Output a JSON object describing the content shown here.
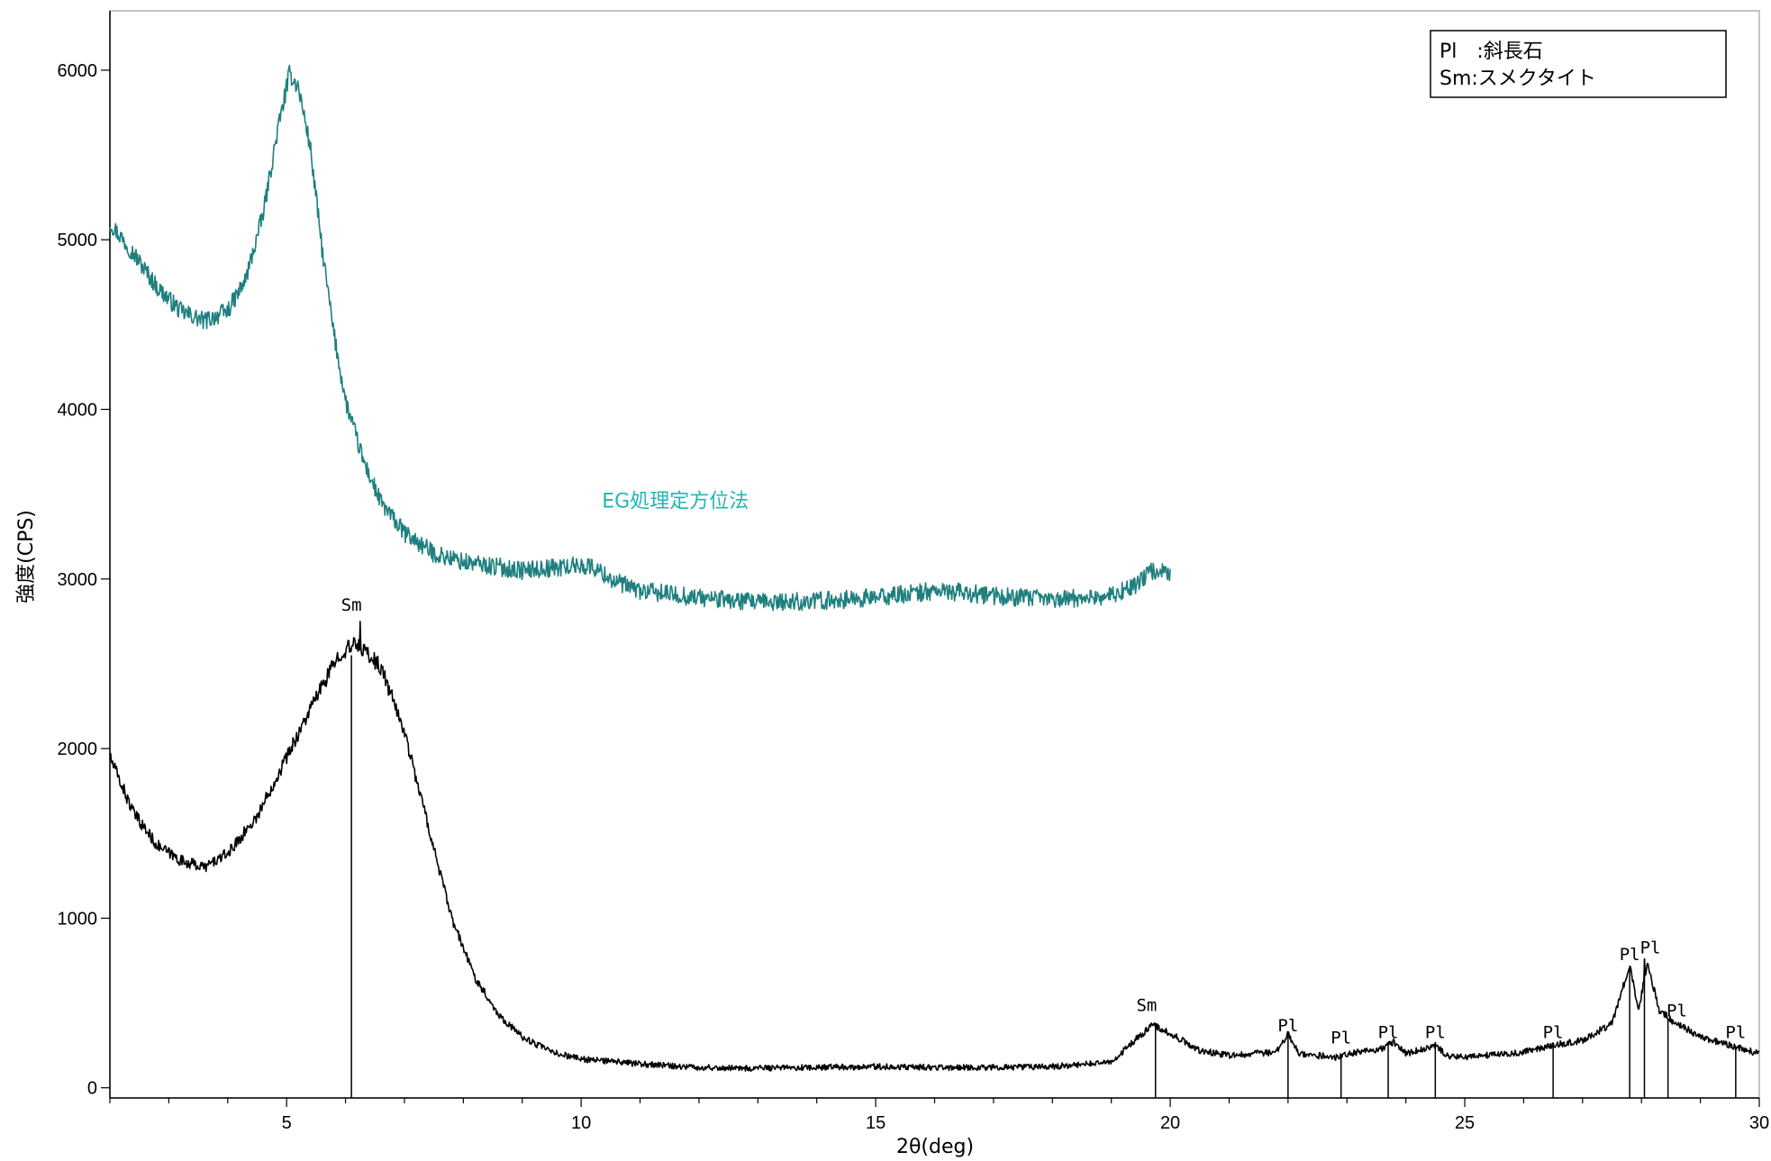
{
  "chart_data": {
    "type": "line",
    "xlabel": "2θ(deg)",
    "ylabel": "強度(CPS)",
    "xlim": [
      2,
      30
    ],
    "ylim": [
      -60,
      6350
    ],
    "x_ticks": [
      5,
      10,
      15,
      20,
      25,
      30
    ],
    "y_ticks": [
      0,
      1000,
      2000,
      3000,
      4000,
      5000,
      6000
    ],
    "x_minor_step": 1,
    "grid": false,
    "legend": {
      "position": "top-right",
      "lines": [
        "Pl　:斜長石",
        "Sm:スメクタイト"
      ]
    },
    "annotation": {
      "text": "EG処理定方位法",
      "color": "#22b5b5",
      "x": 11.6,
      "y": 3420
    },
    "series": [
      {
        "color": "#1f7f7f",
        "x_range": [
          2,
          20
        ],
        "noise": 45,
        "points": [
          [
            2,
            5100
          ],
          [
            2.4,
            4920
          ],
          [
            2.8,
            4720
          ],
          [
            3.2,
            4580
          ],
          [
            3.6,
            4520
          ],
          [
            4,
            4580
          ],
          [
            4.3,
            4760
          ],
          [
            4.6,
            5150
          ],
          [
            4.85,
            5650
          ],
          [
            5.05,
            5980
          ],
          [
            5.2,
            5900
          ],
          [
            5.4,
            5550
          ],
          [
            5.6,
            4950
          ],
          [
            5.8,
            4450
          ],
          [
            6,
            4050
          ],
          [
            6.3,
            3700
          ],
          [
            6.6,
            3450
          ],
          [
            7,
            3270
          ],
          [
            7.5,
            3150
          ],
          [
            8,
            3100
          ],
          [
            9,
            3050
          ],
          [
            10,
            3080
          ],
          [
            10.2,
            3070
          ],
          [
            10.6,
            2980
          ],
          [
            11,
            2930
          ],
          [
            12,
            2890
          ],
          [
            13,
            2860
          ],
          [
            14,
            2870
          ],
          [
            15,
            2890
          ],
          [
            16,
            2930
          ],
          [
            16.5,
            2920
          ],
          [
            17,
            2900
          ],
          [
            18,
            2880
          ],
          [
            19,
            2900
          ],
          [
            19.4,
            2960
          ],
          [
            19.7,
            3050
          ],
          [
            20,
            3040
          ]
        ]
      },
      {
        "color": "#000000",
        "x_range": [
          2,
          30
        ],
        "noise": 40,
        "points": [
          [
            2,
            1950
          ],
          [
            2.4,
            1620
          ],
          [
            2.8,
            1430
          ],
          [
            3.2,
            1340
          ],
          [
            3.6,
            1300
          ],
          [
            4,
            1380
          ],
          [
            4.5,
            1600
          ],
          [
            5,
            1950
          ],
          [
            5.5,
            2300
          ],
          [
            5.9,
            2560
          ],
          [
            6.2,
            2620
          ],
          [
            6.6,
            2480
          ],
          [
            7,
            2100
          ],
          [
            7.4,
            1550
          ],
          [
            7.8,
            1000
          ],
          [
            8.2,
            650
          ],
          [
            8.6,
            430
          ],
          [
            9,
            300
          ],
          [
            9.5,
            210
          ],
          [
            10,
            170
          ],
          [
            11,
            140
          ],
          [
            12,
            120
          ],
          [
            13,
            115
          ],
          [
            14,
            120
          ],
          [
            15,
            125
          ],
          [
            16,
            120
          ],
          [
            17,
            120
          ],
          [
            18,
            125
          ],
          [
            19,
            150
          ],
          [
            19.4,
            280
          ],
          [
            19.7,
            370
          ],
          [
            20,
            320
          ],
          [
            20.5,
            220
          ],
          [
            21,
            190
          ],
          [
            21.8,
            210
          ],
          [
            22,
            310
          ],
          [
            22.2,
            200
          ],
          [
            22.8,
            180
          ],
          [
            23,
            200
          ],
          [
            23.6,
            230
          ],
          [
            23.8,
            270
          ],
          [
            24,
            200
          ],
          [
            24.5,
            250
          ],
          [
            24.7,
            190
          ],
          [
            25,
            180
          ],
          [
            26,
            210
          ],
          [
            26.5,
            250
          ],
          [
            27,
            280
          ],
          [
            27.5,
            380
          ],
          [
            27.8,
            720
          ],
          [
            27.95,
            450
          ],
          [
            28.1,
            740
          ],
          [
            28.3,
            460
          ],
          [
            28.5,
            400
          ],
          [
            29,
            300
          ],
          [
            29.6,
            240
          ],
          [
            30,
            200
          ]
        ],
        "spikes": [
          {
            "x": 6.25,
            "y": 2750
          },
          {
            "x": 22.0,
            "y": 330
          },
          {
            "x": 28.05,
            "y": 760
          }
        ]
      }
    ],
    "peak_markers": [
      {
        "label": "Sm",
        "x": 6.1,
        "y_top": 2550,
        "label_x": 6.1,
        "label_y": 2780
      },
      {
        "label": "Sm",
        "x": 19.75,
        "y_top": 380,
        "label_x": 19.6,
        "label_y": 420
      },
      {
        "label": "Pl",
        "x": 22.0,
        "y_top": 330,
        "label_x": 22.0,
        "label_y": 300
      },
      {
        "label": "Pl",
        "x": 22.9,
        "y_top": 200,
        "label_x": 22.9,
        "label_y": 230
      },
      {
        "label": "Pl",
        "x": 23.7,
        "y_top": 270,
        "label_x": 23.7,
        "label_y": 260
      },
      {
        "label": "Pl",
        "x": 24.5,
        "y_top": 250,
        "label_x": 24.5,
        "label_y": 260
      },
      {
        "label": "Pl",
        "x": 26.5,
        "y_top": 250,
        "label_x": 26.5,
        "label_y": 260
      },
      {
        "label": "Pl",
        "x": 27.8,
        "y_top": 720,
        "label_x": 27.8,
        "label_y": 720
      },
      {
        "label": "Pl",
        "x": 28.05,
        "y_top": 760,
        "label_x": 28.15,
        "label_y": 760
      },
      {
        "label": "Pl",
        "x": 28.45,
        "y_top": 400,
        "label_x": 28.6,
        "label_y": 390
      },
      {
        "label": "Pl",
        "x": 29.6,
        "y_top": 240,
        "label_x": 29.6,
        "label_y": 260
      }
    ]
  }
}
